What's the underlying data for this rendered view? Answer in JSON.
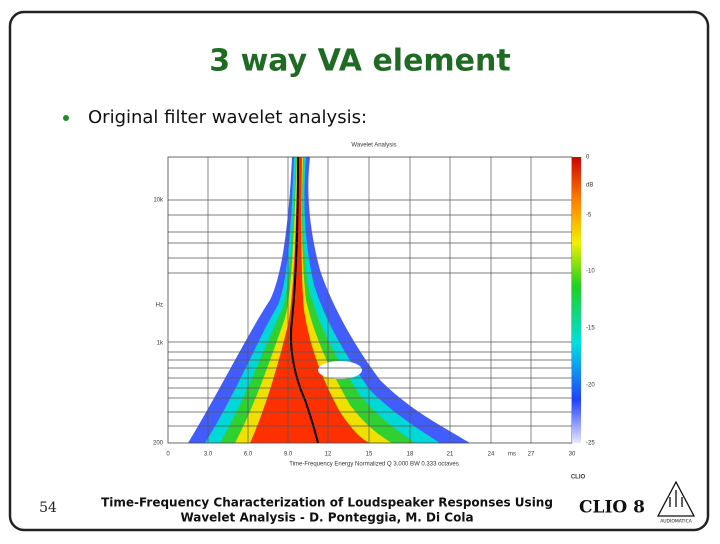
{
  "slide": {
    "title": "3 way VA element",
    "bullet": "Original filter wavelet analysis:",
    "figure": {
      "title": "Wavelet Analysis",
      "y_labels": [
        "10k",
        "Hz",
        "1k",
        "200"
      ],
      "x_labels": [
        "0",
        "3.0",
        "6.0",
        "9.0",
        "12",
        "15",
        "18",
        "21",
        "24",
        "ms",
        "27",
        "30"
      ],
      "colorbar_labels": [
        "0",
        "dB",
        "-5",
        "-10",
        "-15",
        "-20",
        "-25"
      ],
      "caption": "Time-Frequency Energy   Normalized   Q 3.000 BW 0.333 octaves",
      "brand": "CLIO"
    },
    "page_number": "54",
    "footer": [
      "Time-Frequency Characterization of Loudspeaker Responses Using",
      "Wavelet Analysis - D. Ponteggia, M. Di Cola"
    ],
    "logo": "CLIO 8",
    "logo_sub": "AUDIOMATICA"
  }
}
